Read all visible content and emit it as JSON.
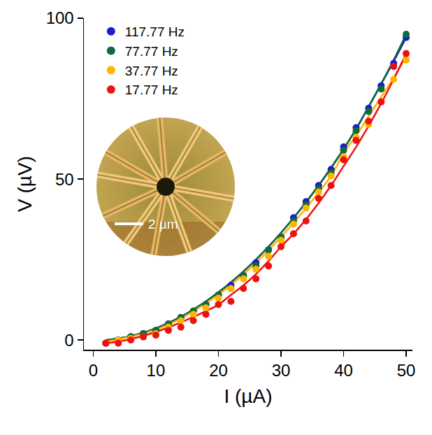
{
  "chart_data": {
    "type": "scatter",
    "x_label": "I (µA)",
    "y_label": "V (µV)",
    "x": [
      2,
      4,
      6,
      8,
      10,
      12,
      14,
      16,
      18,
      20,
      22,
      24,
      26,
      28,
      30,
      32,
      34,
      36,
      38,
      40,
      42,
      44,
      46,
      48,
      50
    ],
    "series": [
      {
        "name": "117.77 Hz",
        "color": "#1c1ccc",
        "marker": "circle",
        "line_style": "solid",
        "values": [
          -1,
          0,
          1,
          2,
          3,
          5,
          7,
          9,
          11,
          14,
          17,
          20,
          24,
          28,
          32,
          38,
          43,
          48,
          53,
          60,
          66,
          72,
          79,
          86,
          94
        ],
        "fit": [
          0,
          0.5,
          1.2,
          2.3,
          3.6,
          5.3,
          7.2,
          9.5,
          12,
          14.8,
          17.9,
          21.3,
          25,
          29,
          33.3,
          37.9,
          42.8,
          48,
          53.5,
          59.3,
          65.6,
          72.5,
          79.5,
          86.6,
          94
        ]
      },
      {
        "name": "77.77 Hz",
        "color": "#0f6b3a",
        "marker": "circle",
        "line_style": "solid",
        "values": [
          -1,
          0,
          1,
          2,
          3,
          5,
          7,
          9,
          11,
          14,
          16,
          20,
          23,
          28,
          32,
          37,
          42,
          47,
          52,
          59,
          65,
          71,
          78,
          85,
          95
        ],
        "fit": [
          0,
          0.5,
          1.2,
          2.3,
          3.6,
          5.3,
          7.2,
          9.5,
          12,
          14.8,
          17.9,
          21.3,
          25,
          29,
          33.3,
          37.9,
          42.8,
          48,
          53.5,
          59.3,
          65.6,
          72.5,
          79.6,
          87,
          95
        ]
      },
      {
        "name": "37.77 Hz",
        "color": "#ffb400",
        "marker": "circle",
        "line_style": "solid",
        "values": [
          -1,
          0,
          0.5,
          1,
          2,
          4,
          6,
          8,
          10,
          13,
          16,
          19,
          22,
          26,
          31,
          36,
          41,
          46,
          51,
          57,
          63,
          67,
          74,
          81,
          87
        ],
        "fit": [
          -0.5,
          0.2,
          1,
          2,
          3.2,
          4.8,
          6.7,
          8.9,
          11.4,
          14.1,
          17.1,
          20.4,
          24,
          27.9,
          32,
          36.4,
          41,
          45.9,
          51,
          58,
          63.5,
          69.5,
          75.5,
          81.5,
          88
        ]
      },
      {
        "name": "17.77 Hz",
        "color": "#ee1111",
        "marker": "circle",
        "line_style": "solid",
        "values": [
          -1,
          -1,
          0,
          1,
          1.5,
          3,
          4,
          6,
          8,
          11,
          12,
          16,
          19,
          23,
          29,
          33,
          37,
          44,
          48,
          56,
          62,
          68,
          74,
          85,
          89
        ],
        "fit": [
          -1,
          -0.5,
          0.3,
          1.3,
          2.5,
          3.9,
          5.5,
          7.2,
          9,
          11,
          14,
          17,
          20.5,
          24.5,
          29,
          33,
          37.5,
          42.5,
          48,
          54,
          60,
          66.5,
          73.5,
          81,
          89
        ]
      }
    ],
    "xlim": [
      -1.5,
      51
    ],
    "ylim": [
      -3,
      100
    ],
    "xticks": [
      0,
      10,
      20,
      30,
      40,
      50
    ],
    "yticks": [
      0,
      50,
      100
    ],
    "legend": "upper left",
    "annotations": [
      {
        "text": "2 µm"
      }
    ]
  }
}
